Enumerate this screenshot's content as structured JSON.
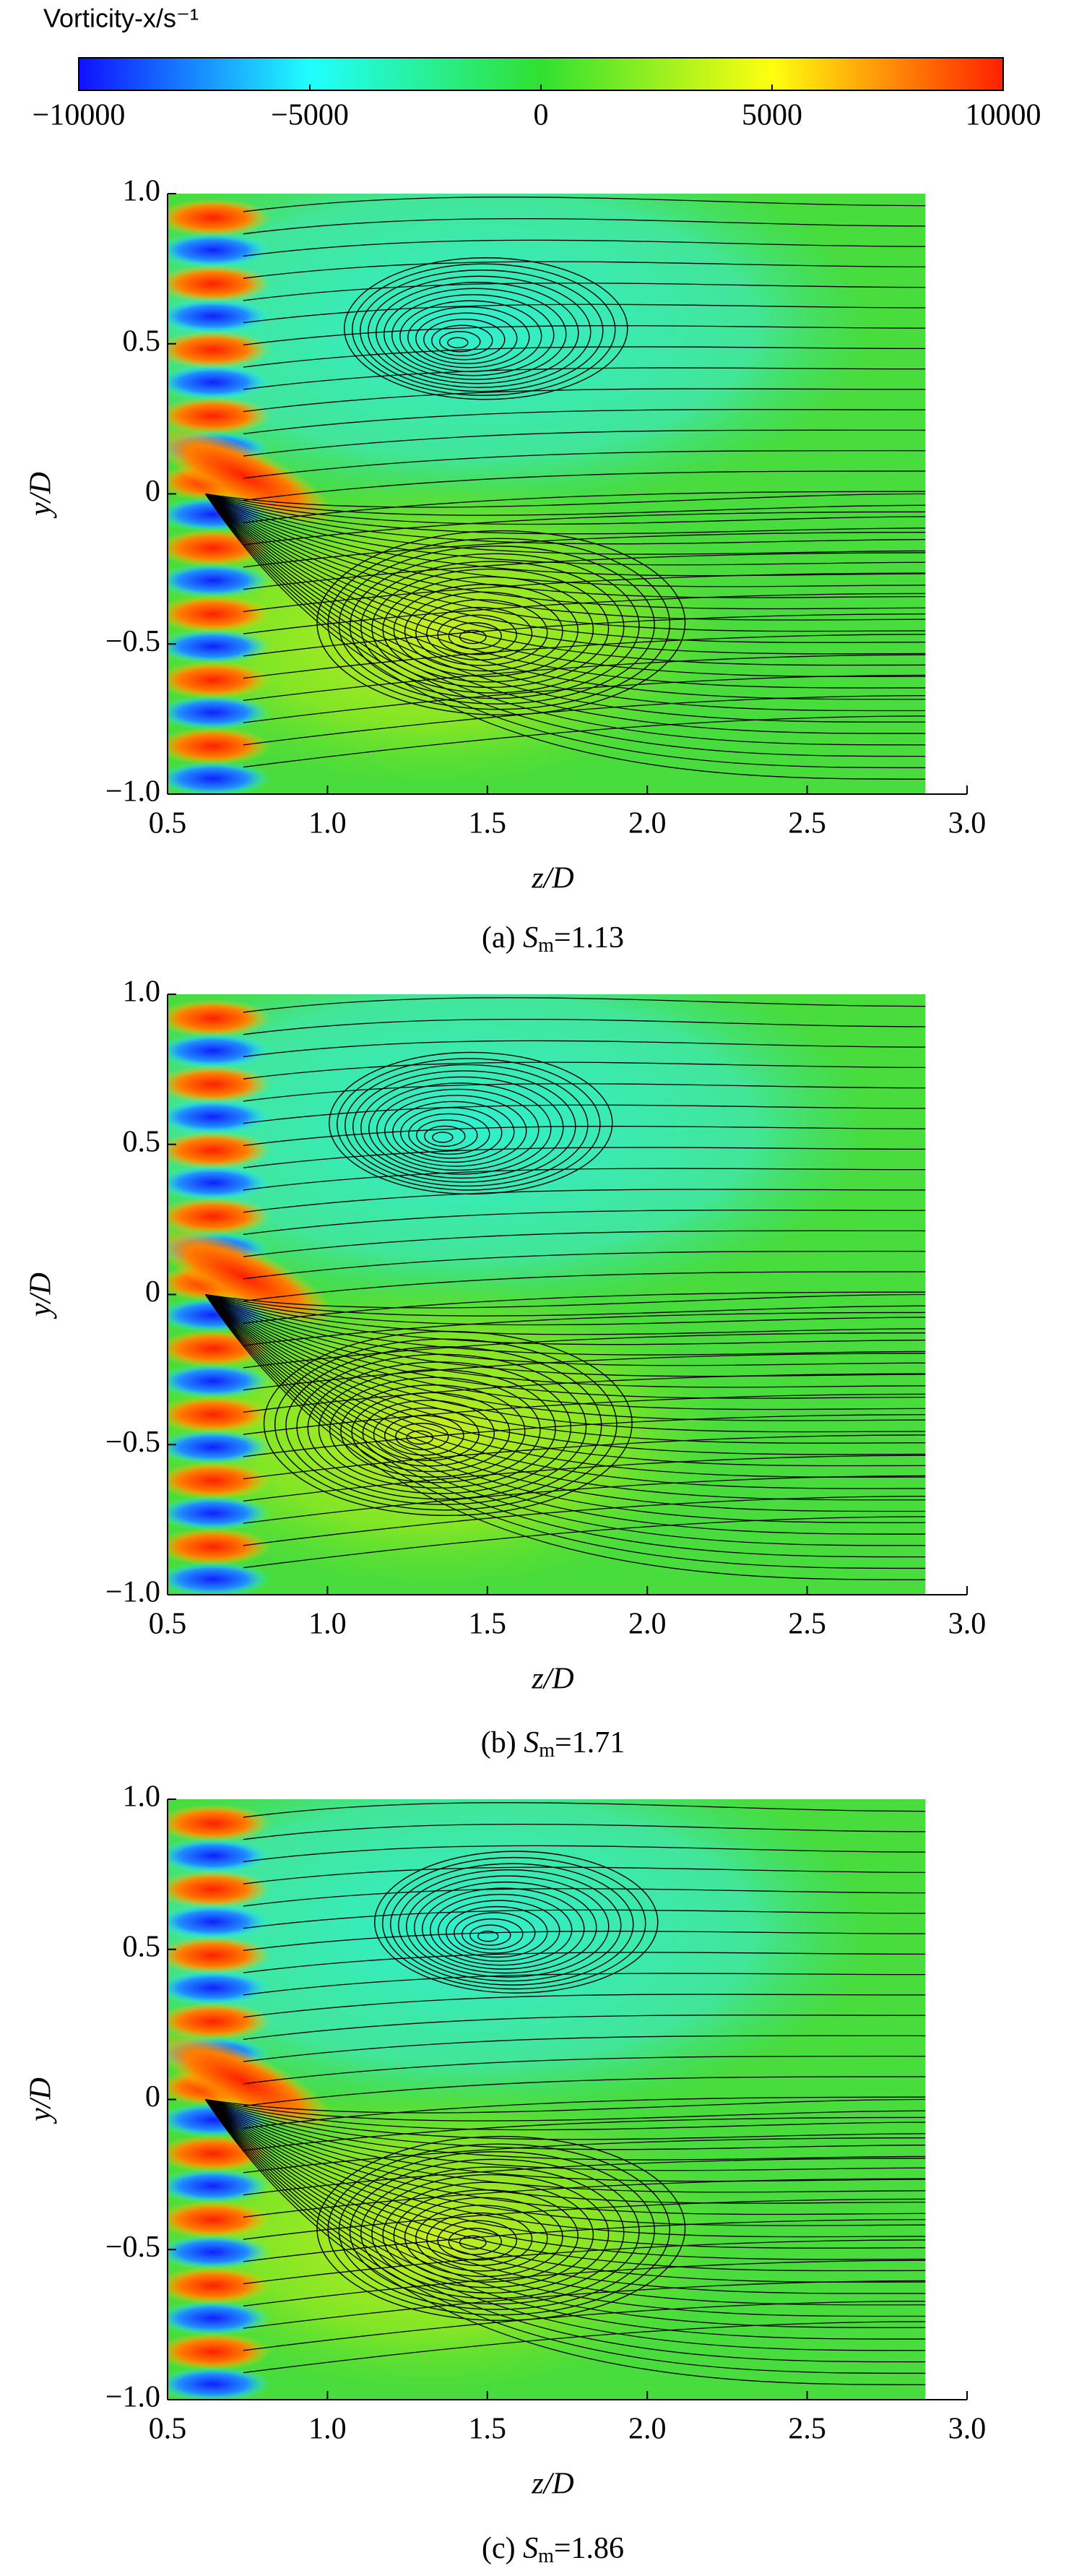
{
  "chart_data": [
    {
      "type": "colorbar",
      "title": "Vorticity-x/s⁻¹",
      "xlim": [
        -10000,
        10000
      ],
      "xticks": [
        {
          "value": -10000,
          "label": "−10000"
        },
        {
          "value": -5000,
          "label": "−5000"
        },
        0,
        5000,
        10000
      ],
      "colors": [
        "#1010ff",
        "#20ffff",
        "#30e030",
        "#ffff10",
        "#ff2000"
      ]
    },
    {
      "type": "contour",
      "xlabel": "z/D",
      "ylabel": "y/D",
      "caption": [
        "(a) ",
        "S",
        "m",
        "=1.13"
      ],
      "xlim": [
        0.5,
        3.0
      ],
      "ylim": [
        -1.0,
        1.0
      ],
      "xticks": [
        0.5,
        {
          "value": 1.0,
          "label": "1.0"
        },
        1.5,
        {
          "value": 2.0,
          "label": "2.0"
        },
        2.5,
        {
          "value": 3.0,
          "label": "3.0"
        }
      ],
      "yticks": [
        {
          "value": 1.0,
          "label": "1.0"
        },
        0.5,
        0,
        {
          "value": -0.5,
          "label": "−0.5"
        },
        {
          "value": -1.0,
          "label": "−1.0"
        }
      ]
    },
    {
      "type": "contour",
      "xlabel": "z/D",
      "ylabel": "y/D",
      "caption": [
        "(b) ",
        "S",
        "m",
        "=1.71"
      ],
      "xlim": [
        0.5,
        3.0
      ],
      "ylim": [
        -1.0,
        1.0
      ],
      "xticks": [
        0.5,
        {
          "value": 1.0,
          "label": "1.0"
        },
        1.5,
        {
          "value": 2.0,
          "label": "2.0"
        },
        2.5,
        {
          "value": 3.0,
          "label": "3.0"
        }
      ],
      "yticks": [
        {
          "value": 1.0,
          "label": "1.0"
        },
        0.5,
        0,
        {
          "value": -0.5,
          "label": "−0.5"
        },
        {
          "value": -1.0,
          "label": "−1.0"
        }
      ]
    },
    {
      "type": "contour",
      "xlabel": "z/D",
      "ylabel": "y/D",
      "caption": [
        "(c) ",
        "S",
        "m",
        "=1.86"
      ],
      "xlim": [
        0.5,
        3.0
      ],
      "ylim": [
        -1.0,
        1.0
      ],
      "xticks": [
        0.5,
        {
          "value": 1.0,
          "label": "1.0"
        },
        1.5,
        {
          "value": 2.0,
          "label": "2.0"
        },
        2.5,
        {
          "value": 3.0,
          "label": "3.0"
        }
      ],
      "yticks": [
        {
          "value": 1.0,
          "label": "1.0"
        },
        0.5,
        0,
        {
          "value": -0.5,
          "label": "−0.5"
        },
        {
          "value": -1.0,
          "label": "−1.0"
        }
      ]
    }
  ]
}
